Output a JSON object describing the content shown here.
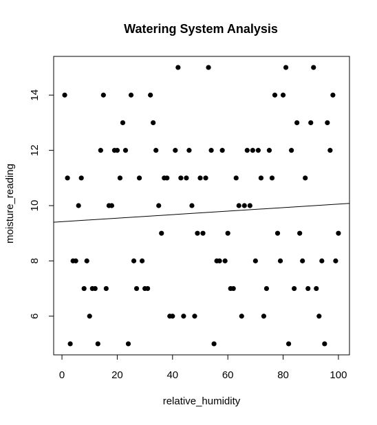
{
  "chart_data": {
    "type": "scatter",
    "title": "Watering System Analysis",
    "xlabel": "relative_humidity",
    "ylabel": "moisture_reading",
    "xlim": [
      -3,
      104
    ],
    "ylim": [
      4.6,
      15.4
    ],
    "xticks": [
      0,
      20,
      40,
      60,
      80,
      100
    ],
    "yticks": [
      6,
      8,
      10,
      12,
      14
    ],
    "grid": false,
    "marker_color": "#000000",
    "points": [
      [
        1,
        14
      ],
      [
        2,
        11
      ],
      [
        3,
        5
      ],
      [
        4,
        8
      ],
      [
        5,
        8
      ],
      [
        6,
        10
      ],
      [
        7,
        11
      ],
      [
        8,
        7
      ],
      [
        9,
        8
      ],
      [
        10,
        6
      ],
      [
        11,
        7
      ],
      [
        12,
        7
      ],
      [
        13,
        5
      ],
      [
        14,
        12
      ],
      [
        15,
        14
      ],
      [
        16,
        7
      ],
      [
        17,
        10
      ],
      [
        18,
        10
      ],
      [
        19,
        12
      ],
      [
        20,
        12
      ],
      [
        21,
        11
      ],
      [
        22,
        13
      ],
      [
        23,
        12
      ],
      [
        24,
        5
      ],
      [
        25,
        14
      ],
      [
        26,
        8
      ],
      [
        27,
        7
      ],
      [
        28,
        11
      ],
      [
        29,
        8
      ],
      [
        30,
        7
      ],
      [
        31,
        7
      ],
      [
        32,
        14
      ],
      [
        33,
        13
      ],
      [
        34,
        12
      ],
      [
        35,
        10
      ],
      [
        36,
        9
      ],
      [
        37,
        11
      ],
      [
        38,
        11
      ],
      [
        39,
        6
      ],
      [
        40,
        6
      ],
      [
        41,
        12
      ],
      [
        42,
        15
      ],
      [
        43,
        11
      ],
      [
        44,
        6
      ],
      [
        45,
        11
      ],
      [
        46,
        12
      ],
      [
        47,
        10
      ],
      [
        48,
        6
      ],
      [
        49,
        9
      ],
      [
        50,
        11
      ],
      [
        51,
        9
      ],
      [
        52,
        11
      ],
      [
        53,
        15
      ],
      [
        54,
        12
      ],
      [
        55,
        5
      ],
      [
        56,
        8
      ],
      [
        57,
        8
      ],
      [
        58,
        12
      ],
      [
        59,
        8
      ],
      [
        60,
        9
      ],
      [
        61,
        7
      ],
      [
        62,
        7
      ],
      [
        63,
        11
      ],
      [
        64,
        10
      ],
      [
        65,
        6
      ],
      [
        66,
        10
      ],
      [
        67,
        12
      ],
      [
        68,
        10
      ],
      [
        69,
        12
      ],
      [
        70,
        8
      ],
      [
        71,
        12
      ],
      [
        72,
        11
      ],
      [
        73,
        6
      ],
      [
        74,
        7
      ],
      [
        75,
        12
      ],
      [
        76,
        11
      ],
      [
        77,
        14
      ],
      [
        78,
        9
      ],
      [
        79,
        8
      ],
      [
        80,
        14
      ],
      [
        81,
        15
      ],
      [
        82,
        5
      ],
      [
        83,
        12
      ],
      [
        84,
        7
      ],
      [
        85,
        13
      ],
      [
        86,
        9
      ],
      [
        87,
        8
      ],
      [
        88,
        11
      ],
      [
        89,
        7
      ],
      [
        90,
        13
      ],
      [
        91,
        15
      ],
      [
        92,
        7
      ],
      [
        93,
        6
      ],
      [
        94,
        8
      ],
      [
        95,
        5
      ],
      [
        96,
        13
      ],
      [
        97,
        12
      ],
      [
        98,
        14
      ],
      [
        99,
        8
      ],
      [
        100,
        9
      ]
    ],
    "regression_line": {
      "x": [
        -3,
        104
      ],
      "y": [
        9.4,
        10.08
      ]
    }
  }
}
